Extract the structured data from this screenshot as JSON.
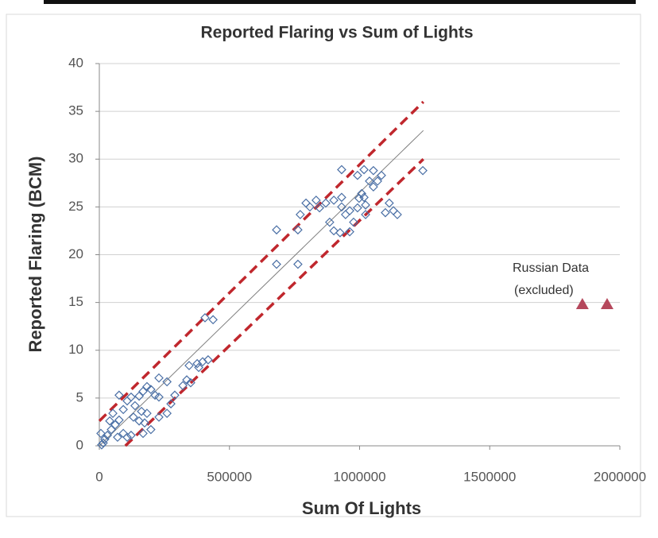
{
  "chart_data": {
    "type": "scatter",
    "title": "Reported Flaring vs Sum of Lights",
    "x_label": "Sum Of Lights",
    "y_label": "Reported Flaring (BCM)",
    "xlim": [
      0,
      2000000
    ],
    "xticks": [
      0,
      500000,
      1000000,
      1500000,
      2000000
    ],
    "ylim": [
      0,
      40
    ],
    "yticks": [
      0,
      5,
      10,
      15,
      20,
      25,
      30,
      35,
      40
    ],
    "grid": true,
    "annotation": [
      "Russian Data",
      "(excluded)"
    ],
    "series": [
      {
        "color": "#4a6fa5",
        "marker": "diamond",
        "x": [
          9000,
          15000,
          21000,
          31000,
          6000,
          46000,
          40000,
          61000,
          76000,
          52000,
          92000,
          107000,
          76000,
          122000,
          137000,
          153000,
          168000,
          183000,
          92000,
          107000,
          122000,
          70000,
          153000,
          162000,
          168000,
          174000,
          131000,
          198000,
          214000,
          229000,
          229000,
          260000,
          275000,
          290000,
          321000,
          336000,
          351000,
          229000,
          260000,
          183000,
          198000,
          345000,
          376000,
          397000,
          418000,
          382000,
          406000,
          437000,
          681000,
          681000,
          763000,
          763000,
          772000,
          794000,
          809000,
          833000,
          846000,
          870000,
          901000,
          931000,
          885000,
          901000,
          925000,
          931000,
          946000,
          962000,
          977000,
          992000,
          1023000,
          1017000,
          1053000,
          1038000,
          1053000,
          1069000,
          1084000,
          1099000,
          1114000,
          1130000,
          1145000,
          1017000,
          998000,
          962000,
          1008000,
          1023000,
          1243000,
          931000,
          992000
        ],
        "y": [
          0.1,
          0.3,
          0.7,
          1.1,
          1.3,
          1.7,
          2.6,
          2.2,
          2.7,
          3.4,
          3.8,
          4.7,
          5.3,
          5.1,
          4.2,
          5.2,
          5.7,
          6.2,
          1.3,
          0.9,
          1.1,
          0.9,
          2.6,
          3.6,
          1.3,
          2.4,
          3.0,
          5.9,
          5.3,
          5.1,
          3.0,
          3.4,
          4.4,
          5.3,
          6.3,
          6.9,
          6.6,
          7.1,
          6.7,
          3.4,
          1.7,
          8.4,
          8.6,
          8.8,
          9.0,
          8.2,
          13.4,
          13.2,
          22.6,
          19.0,
          22.6,
          19.0,
          24.2,
          25.4,
          25.0,
          25.7,
          24.9,
          25.4,
          25.7,
          26.0,
          23.4,
          22.5,
          22.3,
          25.0,
          24.2,
          24.6,
          23.4,
          24.9,
          25.2,
          28.9,
          28.8,
          27.7,
          27.1,
          27.7,
          28.3,
          24.4,
          25.4,
          24.6,
          24.2,
          26.0,
          25.9,
          22.4,
          26.4,
          24.2,
          28.8,
          28.9,
          28.3
        ]
      },
      {
        "color": "#b5485c",
        "marker": "triangle",
        "x": [
          1856000,
          1951000
        ],
        "y": [
          14.8,
          14.8
        ]
      }
    ],
    "lines": [
      {
        "color": "#7f7f7f",
        "dash": false,
        "x": [
          0,
          1245000
        ],
        "y": [
          0,
          33
        ]
      },
      {
        "color": "#c0272d",
        "dash": true,
        "x": [
          0,
          1245000
        ],
        "y": [
          2.6,
          36
        ]
      },
      {
        "color": "#c0272d",
        "dash": true,
        "x": [
          100000,
          1245000
        ],
        "y": [
          0,
          30
        ]
      }
    ]
  }
}
